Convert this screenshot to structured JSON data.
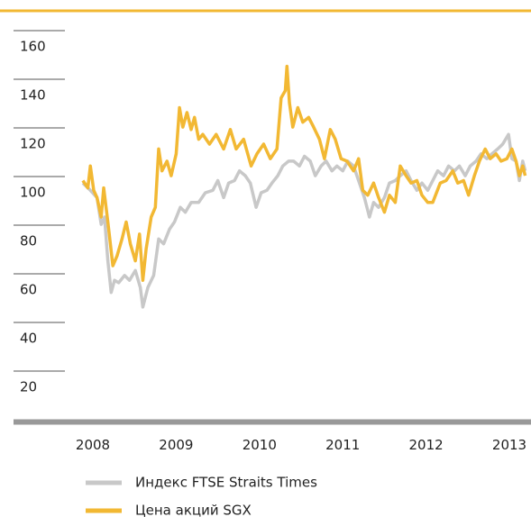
{
  "chart_data": {
    "type": "line",
    "xlim": [
      2007.1,
      2013.2
    ],
    "xticks": [
      2008,
      2009,
      2010,
      2011,
      2012,
      2013
    ],
    "ylim": [
      5,
      165
    ],
    "yticks": [
      20,
      40,
      60,
      80,
      100,
      120,
      140,
      160
    ],
    "grid": true,
    "series": [
      {
        "name": "Индекс FTSE Straits Times",
        "color": "#c8c8c8",
        "x": [
          2007.88,
          2007.97,
          2008.05,
          2008.1,
          2008.14,
          2008.18,
          2008.22,
          2008.26,
          2008.31,
          2008.38,
          2008.44,
          2008.51,
          2008.57,
          2008.6,
          2008.66,
          2008.73,
          2008.79,
          2008.85,
          2008.92,
          2008.98,
          2009.05,
          2009.11,
          2009.18,
          2009.27,
          2009.35,
          2009.44,
          2009.5,
          2009.57,
          2009.63,
          2009.7,
          2009.76,
          2009.83,
          2009.89,
          2009.96,
          2010.02,
          2010.09,
          2010.15,
          2010.22,
          2010.28,
          2010.35,
          2010.41,
          2010.48,
          2010.54,
          2010.61,
          2010.67,
          2010.74,
          2010.8,
          2010.87,
          2010.93,
          2011.0,
          2011.06,
          2011.13,
          2011.19,
          2011.26,
          2011.32,
          2011.37,
          2011.43,
          2011.5,
          2011.56,
          2011.63,
          2011.69,
          2011.76,
          2011.82,
          2011.89,
          2011.95,
          2012.02,
          2012.08,
          2012.14,
          2012.21,
          2012.27,
          2012.34,
          2012.4,
          2012.47,
          2012.53,
          2012.6,
          2012.66,
          2012.73,
          2012.79,
          2012.86,
          2012.92,
          2012.99,
          2013.03,
          2013.08,
          2013.12,
          2013.16,
          2013.19
        ],
        "values": [
          104,
          101,
          98,
          87,
          90,
          72,
          59,
          64,
          63,
          66,
          64,
          68,
          61,
          53,
          61,
          66,
          81,
          79,
          85,
          88,
          94,
          92,
          96,
          96,
          100,
          101,
          105,
          98,
          104,
          105,
          109,
          107,
          104,
          94,
          100,
          101,
          104,
          107,
          111,
          113,
          113,
          111,
          115,
          113,
          107,
          111,
          113,
          109,
          111,
          109,
          113,
          111,
          105,
          98,
          90,
          96,
          94,
          98,
          104,
          105,
          107,
          109,
          105,
          101,
          104,
          101,
          105,
          109,
          107,
          111,
          109,
          111,
          107,
          111,
          113,
          116,
          114,
          116,
          118,
          120,
          124,
          114,
          113,
          105,
          113,
          109
        ]
      },
      {
        "name": "Цена акций SGX",
        "color": "#f2b833",
        "x": [
          2007.88,
          2007.94,
          2007.97,
          2008.01,
          2008.05,
          2008.1,
          2008.13,
          2008.18,
          2008.24,
          2008.29,
          2008.35,
          2008.4,
          2008.45,
          2008.51,
          2008.56,
          2008.6,
          2008.64,
          2008.7,
          2008.75,
          2008.79,
          2008.83,
          2008.89,
          2008.94,
          2009.0,
          2009.04,
          2009.08,
          2009.13,
          2009.18,
          2009.22,
          2009.27,
          2009.32,
          2009.4,
          2009.48,
          2009.57,
          2009.65,
          2009.72,
          2009.81,
          2009.9,
          2009.97,
          2010.05,
          2010.13,
          2010.21,
          2010.26,
          2010.31,
          2010.33,
          2010.36,
          2010.4,
          2010.46,
          2010.52,
          2010.59,
          2010.65,
          2010.72,
          2010.78,
          2010.85,
          2010.91,
          2010.98,
          2011.05,
          2011.13,
          2011.19,
          2011.24,
          2011.3,
          2011.37,
          2011.43,
          2011.5,
          2011.56,
          2011.63,
          2011.69,
          2011.76,
          2011.82,
          2011.89,
          2011.95,
          2012.02,
          2012.08,
          2012.17,
          2012.24,
          2012.32,
          2012.38,
          2012.45,
          2012.51,
          2012.58,
          2012.64,
          2012.71,
          2012.77,
          2012.84,
          2012.9,
          2012.97,
          2013.03,
          2013.08,
          2013.12,
          2013.16,
          2013.19
        ],
        "values": [
          105,
          102,
          111,
          101,
          98,
          90,
          102,
          88,
          70,
          74,
          81,
          88,
          79,
          72,
          83,
          64,
          77,
          90,
          94,
          118,
          109,
          113,
          107,
          116,
          135,
          127,
          133,
          126,
          131,
          122,
          124,
          120,
          124,
          118,
          126,
          118,
          122,
          111,
          116,
          120,
          114,
          118,
          139,
          142,
          152,
          137,
          127,
          135,
          129,
          131,
          127,
          122,
          114,
          126,
          122,
          114,
          113,
          109,
          114,
          101,
          99,
          104,
          98,
          92,
          99,
          96,
          111,
          107,
          104,
          105,
          99,
          96,
          96,
          104,
          105,
          109,
          104,
          105,
          99,
          107,
          113,
          118,
          114,
          116,
          113,
          114,
          118,
          113,
          107,
          111,
          107
        ]
      }
    ]
  }
}
